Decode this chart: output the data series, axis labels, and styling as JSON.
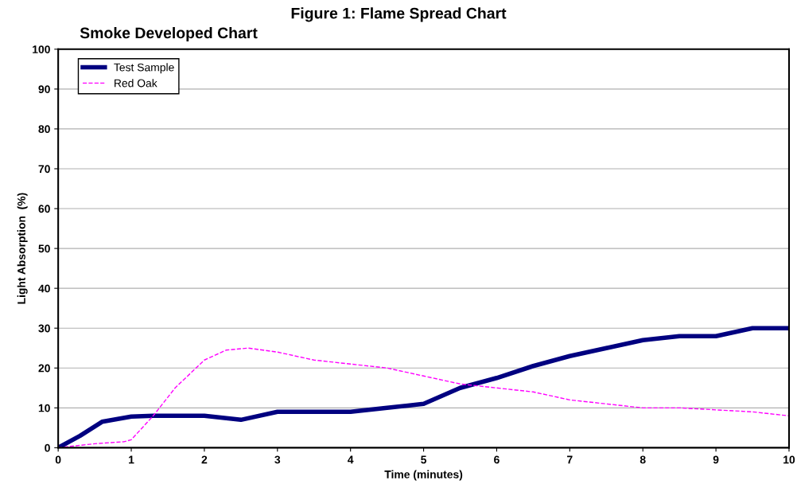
{
  "chart_data": {
    "type": "line",
    "title": "Figure 1: Flame Spread Chart",
    "subtitle": "Smoke Developed Chart",
    "xlabel": "Time (minutes)",
    "ylabel": "Light Absorption  (%)",
    "xlim": [
      0,
      10
    ],
    "xticks": [
      0,
      1,
      2,
      3,
      4,
      5,
      6,
      7,
      8,
      9,
      10
    ],
    "ylim": [
      0,
      100
    ],
    "yticks": [
      0,
      10,
      20,
      30,
      40,
      50,
      60,
      70,
      80,
      90,
      100
    ],
    "grid": "y",
    "legend": "top left",
    "series": [
      {
        "name": "Test Sample",
        "color": "#000080",
        "line_style": "solid",
        "x": [
          0,
          0.3,
          0.6,
          1,
          1.3,
          1.6,
          2,
          2.5,
          3,
          3.5,
          4,
          4.5,
          5,
          5.5,
          6,
          6.5,
          7,
          7.5,
          8,
          8.5,
          9,
          9.5,
          10
        ],
        "values": [
          0,
          3,
          6.5,
          7.8,
          8,
          8,
          8,
          7,
          9,
          9,
          9,
          10,
          11,
          15,
          17.5,
          20.5,
          23,
          25,
          27,
          28,
          28,
          30,
          30
        ]
      },
      {
        "name": "Red Oak",
        "color": "#ff00ff",
        "line_style": "dashed",
        "x": [
          0,
          0.5,
          0.9,
          1,
          1.3,
          1.6,
          2,
          2.3,
          2.6,
          3,
          3.5,
          4,
          4.5,
          5,
          5.5,
          6,
          6.5,
          7,
          7.5,
          8,
          8.5,
          9,
          9.5,
          10
        ],
        "values": [
          0,
          1,
          1.5,
          2,
          8,
          15,
          22,
          24.5,
          25,
          24,
          22,
          21,
          20,
          18,
          16,
          15,
          14,
          12,
          11,
          10,
          10,
          9.5,
          9,
          8
        ]
      }
    ]
  }
}
